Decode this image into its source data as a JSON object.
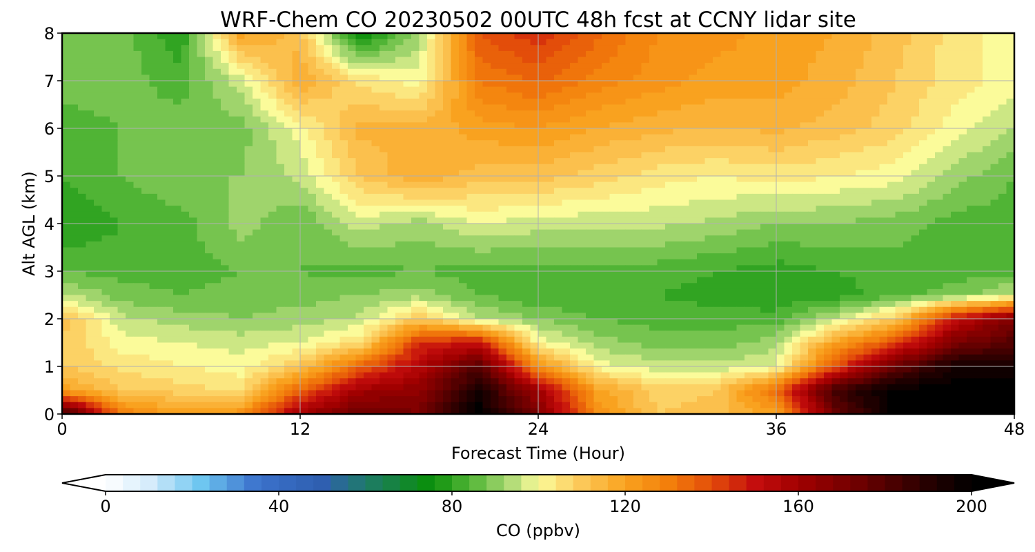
{
  "chart_data": {
    "type": "heatmap",
    "title": "WRF-Chem CO  20230502 00UTC 48h fcst at CCNY lidar site",
    "xlabel": "Forecast Time (Hour)",
    "ylabel": "Alt AGL (km)",
    "xlim": [
      0,
      48
    ],
    "ylim": [
      0,
      8
    ],
    "x_ticks": [
      0,
      12,
      24,
      36,
      48
    ],
    "y_ticks": [
      0,
      1,
      2,
      3,
      4,
      5,
      6,
      7,
      8
    ],
    "grid": true,
    "x": [
      0,
      3,
      6,
      9,
      12,
      15,
      18,
      21,
      24,
      27,
      30,
      33,
      36,
      39,
      42,
      45,
      48
    ],
    "y": [
      0,
      0.5,
      1,
      1.5,
      2,
      2.5,
      3,
      4,
      5,
      6,
      7,
      8
    ],
    "z": [
      [
        190,
        130,
        120,
        125,
        160,
        175,
        170,
        200,
        170,
        125,
        110,
        112,
        120,
        175,
        200,
        200,
        200
      ],
      [
        120,
        110,
        108,
        105,
        135,
        160,
        165,
        195,
        160,
        120,
        108,
        110,
        135,
        185,
        200,
        200,
        200
      ],
      [
        110,
        105,
        102,
        100,
        110,
        135,
        155,
        180,
        125,
        100,
        96,
        95,
        98,
        140,
        175,
        195,
        195
      ],
      [
        110,
        100,
        98,
        96,
        98,
        105,
        145,
        150,
        100,
        92,
        88,
        88,
        92,
        120,
        140,
        170,
        180
      ],
      [
        112,
        95,
        92,
        90,
        92,
        95,
        110,
        95,
        90,
        86,
        84,
        84,
        84,
        95,
        110,
        150,
        170
      ],
      [
        95,
        88,
        86,
        88,
        88,
        90,
        92,
        86,
        82,
        82,
        82,
        80,
        78,
        80,
        84,
        88,
        95
      ],
      [
        86,
        84,
        84,
        86,
        86,
        84,
        86,
        84,
        84,
        84,
        84,
        82,
        80,
        82,
        84,
        84,
        84
      ],
      [
        78,
        82,
        84,
        92,
        86,
        96,
        92,
        98,
        96,
        95,
        95,
        93,
        90,
        90,
        88,
        84,
        84
      ],
      [
        82,
        86,
        90,
        90,
        95,
        110,
        118,
        112,
        112,
        108,
        104,
        102,
        104,
        102,
        100,
        92,
        86
      ],
      [
        84,
        86,
        88,
        88,
        100,
        115,
        115,
        120,
        122,
        118,
        115,
        114,
        115,
        112,
        108,
        100,
        94
      ],
      [
        88,
        88,
        84,
        96,
        118,
        105,
        100,
        130,
        135,
        128,
        124,
        120,
        120,
        116,
        110,
        104,
        100
      ],
      [
        88,
        88,
        78,
        120,
        112,
        72,
        92,
        138,
        145,
        135,
        126,
        124,
        120,
        118,
        112,
        104,
        100
      ]
    ],
    "colorbar": {
      "label": "CO  (ppbv)",
      "min": 0,
      "max": 200,
      "ticks": [
        0,
        40,
        80,
        120,
        160,
        200
      ],
      "extend": "both"
    }
  },
  "colors": {
    "stops": [
      [
        0,
        "#ffffff"
      ],
      [
        10,
        "#d6ecfb"
      ],
      [
        22,
        "#6ec6f0"
      ],
      [
        35,
        "#3b72cc"
      ],
      [
        50,
        "#2f5fb0"
      ],
      [
        60,
        "#1f7a6a"
      ],
      [
        75,
        "#0a8f0a"
      ],
      [
        85,
        "#58b83a"
      ],
      [
        93,
        "#a9d873"
      ],
      [
        100,
        "#fbfb9a"
      ],
      [
        110,
        "#fcc858"
      ],
      [
        120,
        "#f9a21f"
      ],
      [
        130,
        "#f37f0b"
      ],
      [
        140,
        "#e34d0a"
      ],
      [
        150,
        "#c40d0d"
      ],
      [
        160,
        "#a10000"
      ],
      [
        175,
        "#6a0000"
      ],
      [
        190,
        "#260000"
      ],
      [
        200,
        "#000000"
      ]
    ],
    "grid": "#b0b0b0"
  }
}
